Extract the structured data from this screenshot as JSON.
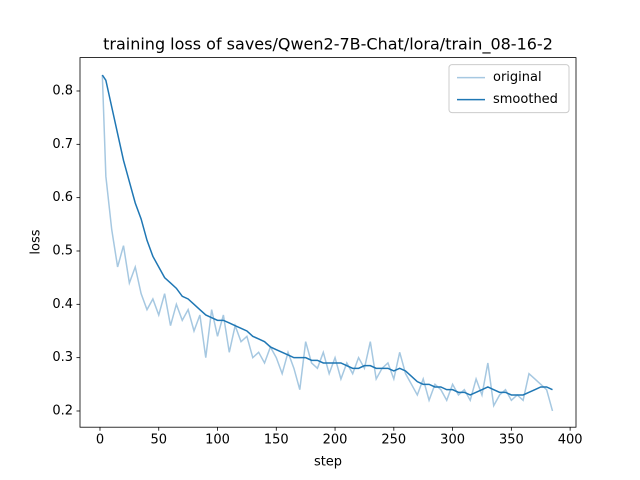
{
  "chart_data": {
    "type": "line",
    "title": "training loss of saves/Qwen2-7B-Chat/lora/train_08-16-2",
    "xlabel": "step",
    "ylabel": "loss",
    "x": [
      2,
      5,
      10,
      15,
      20,
      25,
      30,
      35,
      40,
      45,
      50,
      55,
      60,
      65,
      70,
      75,
      80,
      85,
      90,
      95,
      100,
      105,
      110,
      115,
      120,
      125,
      130,
      135,
      140,
      145,
      150,
      155,
      160,
      165,
      170,
      175,
      180,
      185,
      190,
      195,
      200,
      205,
      210,
      215,
      220,
      225,
      230,
      235,
      240,
      245,
      250,
      255,
      260,
      265,
      270,
      275,
      280,
      285,
      290,
      295,
      300,
      305,
      310,
      315,
      320,
      325,
      330,
      335,
      340,
      345,
      350,
      355,
      360,
      365,
      370,
      375,
      380,
      385
    ],
    "series": [
      {
        "name": "original",
        "color": "#a6c8e1",
        "values": [
          0.83,
          0.64,
          0.54,
          0.47,
          0.51,
          0.44,
          0.47,
          0.42,
          0.39,
          0.41,
          0.38,
          0.42,
          0.36,
          0.4,
          0.37,
          0.39,
          0.35,
          0.38,
          0.3,
          0.39,
          0.34,
          0.38,
          0.31,
          0.36,
          0.33,
          0.34,
          0.3,
          0.31,
          0.29,
          0.32,
          0.3,
          0.27,
          0.31,
          0.28,
          0.24,
          0.33,
          0.29,
          0.28,
          0.31,
          0.27,
          0.3,
          0.26,
          0.29,
          0.27,
          0.3,
          0.28,
          0.33,
          0.26,
          0.28,
          0.29,
          0.26,
          0.31,
          0.27,
          0.25,
          0.23,
          0.26,
          0.22,
          0.25,
          0.24,
          0.22,
          0.25,
          0.23,
          0.24,
          0.22,
          0.26,
          0.23,
          0.29,
          0.21,
          0.23,
          0.24,
          0.22,
          0.23,
          0.22,
          0.27,
          0.26,
          0.25,
          0.24,
          0.2
        ]
      },
      {
        "name": "smoothed",
        "color": "#1f77b4",
        "values": [
          0.83,
          0.82,
          0.77,
          0.72,
          0.67,
          0.63,
          0.59,
          0.56,
          0.52,
          0.49,
          0.47,
          0.45,
          0.44,
          0.43,
          0.415,
          0.41,
          0.4,
          0.39,
          0.38,
          0.375,
          0.37,
          0.37,
          0.365,
          0.36,
          0.355,
          0.35,
          0.34,
          0.335,
          0.33,
          0.32,
          0.315,
          0.31,
          0.305,
          0.3,
          0.3,
          0.3,
          0.295,
          0.295,
          0.29,
          0.29,
          0.29,
          0.29,
          0.285,
          0.28,
          0.28,
          0.285,
          0.285,
          0.28,
          0.28,
          0.28,
          0.275,
          0.28,
          0.275,
          0.265,
          0.255,
          0.25,
          0.25,
          0.245,
          0.245,
          0.24,
          0.24,
          0.235,
          0.235,
          0.23,
          0.235,
          0.24,
          0.245,
          0.24,
          0.235,
          0.235,
          0.23,
          0.23,
          0.23,
          0.235,
          0.24,
          0.245,
          0.245,
          0.24
        ]
      }
    ],
    "xlim": [
      -17,
      405
    ],
    "ylim": [
      0.1696,
      0.8626
    ],
    "xticks": [
      0,
      50,
      100,
      150,
      200,
      250,
      300,
      350,
      400
    ],
    "yticks": [
      0.2,
      0.3,
      0.4,
      0.5,
      0.6,
      0.7,
      0.8
    ],
    "legend": "upper right"
  }
}
